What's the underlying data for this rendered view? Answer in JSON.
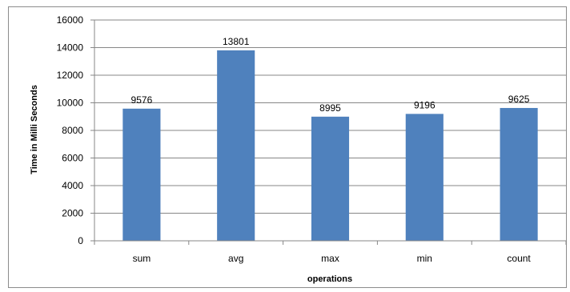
{
  "chart_data": {
    "type": "bar",
    "categories": [
      "sum",
      "avg",
      "max",
      "min",
      "count"
    ],
    "values": [
      9576,
      13801,
      8995,
      9196,
      9625
    ],
    "data_labels": [
      "9576",
      "13801",
      "8995",
      "9196",
      "9625"
    ],
    "title": "",
    "xlabel": "operations",
    "ylabel": "Time in Milli Seconds",
    "ylim": [
      0,
      16000
    ],
    "yticks": [
      0,
      2000,
      4000,
      6000,
      8000,
      10000,
      12000,
      14000,
      16000
    ],
    "grid": true,
    "legend": "none",
    "colors": {
      "bar": "#4f81bd",
      "bar_edge": "#3a6ea5",
      "gridline": "#878787",
      "axis": "#878787"
    }
  }
}
